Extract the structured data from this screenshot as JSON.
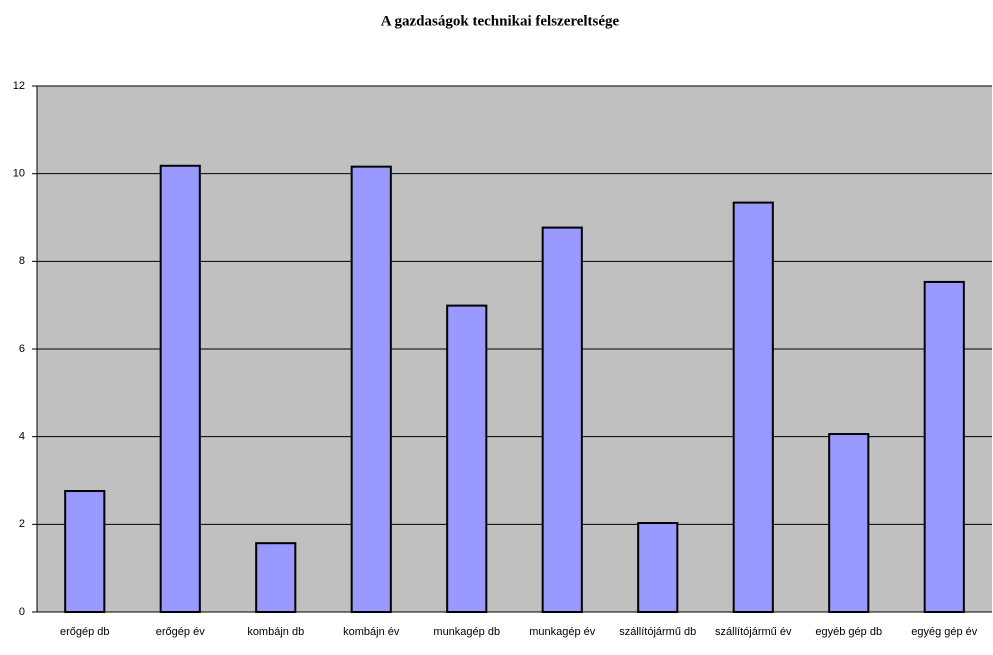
{
  "chart_data": {
    "type": "bar",
    "title": "A gazdaságok technikai felszereltsége",
    "categories": [
      "erőgép db",
      "erőgép év",
      "kombájn db",
      "kombájn év",
      "munkagép db",
      "munkagép év",
      "szállítójármű db",
      "szállítójármű év",
      "egyéb gép db",
      "egyég gép év"
    ],
    "values": [
      2.76,
      10.18,
      1.57,
      10.16,
      6.99,
      8.77,
      2.03,
      9.34,
      4.06,
      7.53
    ],
    "color": "#9999ff",
    "plot_background": "#c0c0c0",
    "ylim": [
      0,
      12
    ],
    "yticks": [
      0,
      2,
      4,
      6,
      8,
      10,
      12
    ],
    "grid": true
  }
}
